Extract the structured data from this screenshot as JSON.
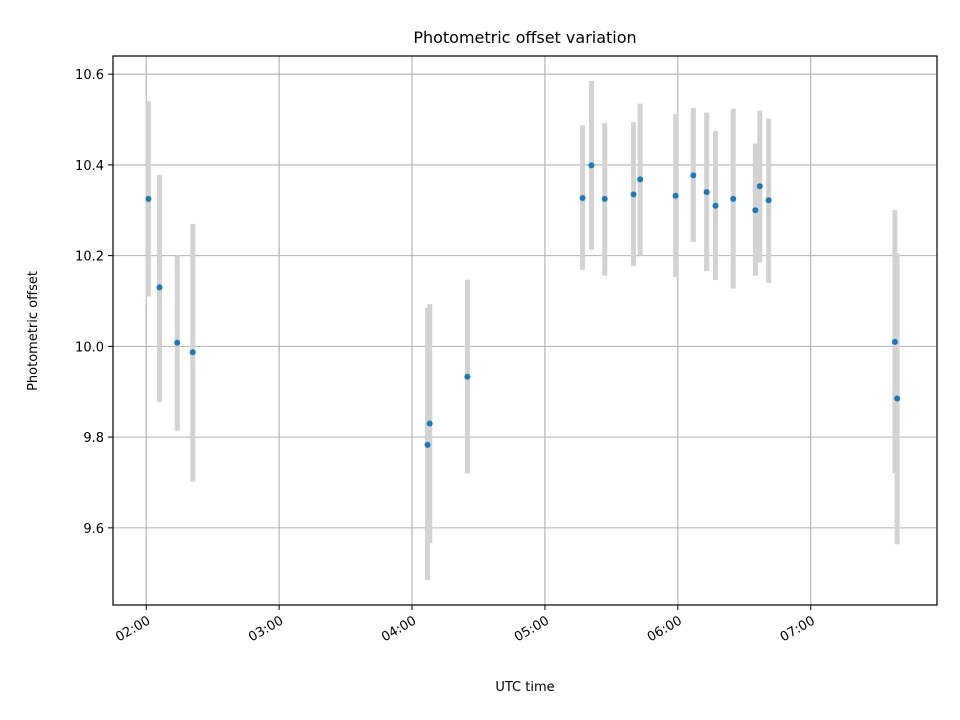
{
  "chart_data": {
    "type": "scatter",
    "title": "Photometric offset variation",
    "xlabel": "UTC time",
    "ylabel": "Photometric offset",
    "x_axis": {
      "type": "time",
      "range": [
        "01:45",
        "07:57"
      ],
      "ticks": [
        "02:00",
        "03:00",
        "04:00",
        "05:00",
        "06:00",
        "07:00"
      ]
    },
    "y_axis": {
      "range": [
        9.43,
        10.64
      ],
      "ticks": [
        9.6,
        9.8,
        10.0,
        10.2,
        10.4,
        10.6
      ],
      "tick_labels": [
        "9.6",
        "9.8",
        "10.0",
        "10.2",
        "10.4",
        "10.6"
      ]
    },
    "grid": true,
    "colors": {
      "points": "#1f77b4",
      "error_bars": "#d3d3d3"
    },
    "series": [
      {
        "marker": "point",
        "error_bars": "vertical",
        "points": [
          {
            "x": "02:01",
            "y": 10.325,
            "ylo": 10.11,
            "yhi": 10.54
          },
          {
            "x": "02:06",
            "y": 10.13,
            "ylo": 9.877,
            "yhi": 10.378
          },
          {
            "x": "02:14",
            "y": 10.008,
            "ylo": 9.814,
            "yhi": 10.2
          },
          {
            "x": "02:21",
            "y": 9.987,
            "ylo": 9.702,
            "yhi": 10.27
          },
          {
            "x": "04:07",
            "y": 9.783,
            "ylo": 9.485,
            "yhi": 10.085
          },
          {
            "x": "04:08",
            "y": 9.83,
            "ylo": 9.566,
            "yhi": 10.093
          },
          {
            "x": "04:25",
            "y": 9.933,
            "ylo": 9.72,
            "yhi": 10.147
          },
          {
            "x": "05:17",
            "y": 10.327,
            "ylo": 10.169,
            "yhi": 10.487
          },
          {
            "x": "05:21",
            "y": 10.399,
            "ylo": 10.213,
            "yhi": 10.585
          },
          {
            "x": "05:27",
            "y": 10.325,
            "ylo": 10.156,
            "yhi": 10.492
          },
          {
            "x": "05:40",
            "y": 10.335,
            "ylo": 10.177,
            "yhi": 10.494
          },
          {
            "x": "05:43",
            "y": 10.368,
            "ylo": 10.2,
            "yhi": 10.535
          },
          {
            "x": "05:59",
            "y": 10.332,
            "ylo": 10.153,
            "yhi": 10.512
          },
          {
            "x": "06:07",
            "y": 10.377,
            "ylo": 10.23,
            "yhi": 10.525
          },
          {
            "x": "06:13",
            "y": 10.34,
            "ylo": 10.166,
            "yhi": 10.515
          },
          {
            "x": "06:17",
            "y": 10.31,
            "ylo": 10.146,
            "yhi": 10.475
          },
          {
            "x": "06:25",
            "y": 10.325,
            "ylo": 10.127,
            "yhi": 10.524
          },
          {
            "x": "06:35",
            "y": 10.3,
            "ylo": 10.156,
            "yhi": 10.447
          },
          {
            "x": "06:37",
            "y": 10.353,
            "ylo": 10.185,
            "yhi": 10.52
          },
          {
            "x": "06:41",
            "y": 10.322,
            "ylo": 10.14,
            "yhi": 10.502
          },
          {
            "x": "07:38",
            "y": 10.01,
            "ylo": 9.72,
            "yhi": 10.3
          },
          {
            "x": "07:39",
            "y": 9.885,
            "ylo": 9.564,
            "yhi": 10.205
          }
        ]
      }
    ]
  }
}
